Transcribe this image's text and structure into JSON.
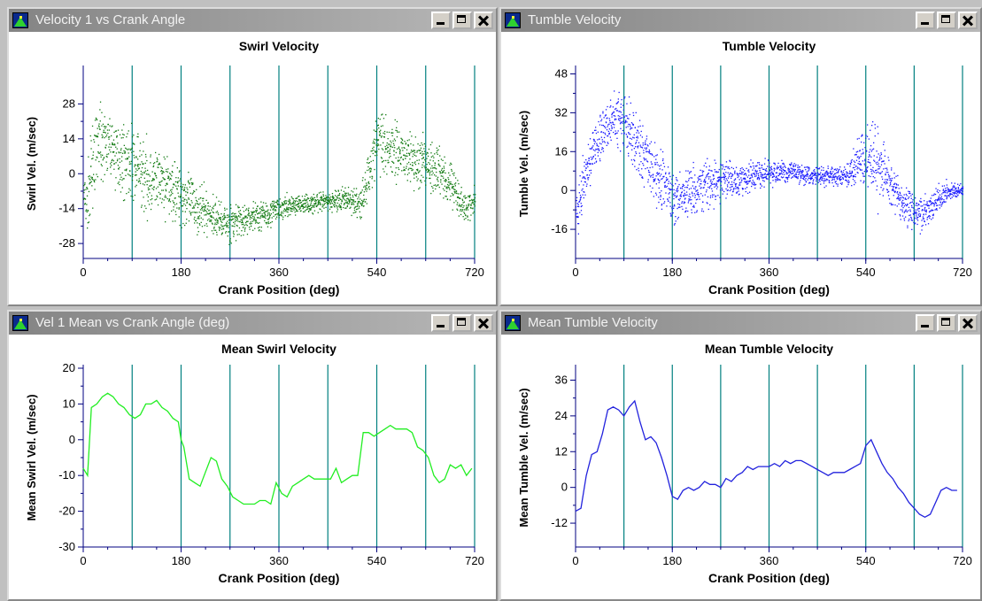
{
  "windows": [
    {
      "title": "Velocity 1 vs Crank Angle"
    },
    {
      "title": "Tumble Velocity"
    },
    {
      "title": "Vel 1 Mean vs Crank Angle (deg)"
    },
    {
      "title": "Mean Tumble Velocity"
    }
  ],
  "colors": {
    "swirl_scatter": "#117a11",
    "tumble_scatter": "#1a1aff",
    "swirl_mean": "#22ee22",
    "tumble_mean": "#2222dd",
    "vertical_grid": "#008080"
  },
  "chart_data": [
    {
      "type": "scatter",
      "title": "Swirl Velocity",
      "xlabel": "Crank Position (deg)",
      "ylabel": "Swirl Vel. (m/sec)",
      "xlim": [
        0,
        720
      ],
      "ylim": [
        -34,
        42
      ],
      "xticks": [
        0,
        180,
        360,
        540,
        720
      ],
      "yticks": [
        -28,
        -14,
        0,
        14,
        28
      ],
      "vgrid": [
        90,
        180,
        270,
        360,
        450,
        540,
        630,
        720
      ],
      "envelope": {
        "x": [
          0,
          5,
          10,
          20,
          30,
          40,
          60,
          90,
          120,
          150,
          180,
          210,
          240,
          270,
          300,
          330,
          360,
          390,
          420,
          450,
          480,
          510,
          540,
          560,
          590,
          620,
          650,
          680,
          700,
          710,
          720
        ],
        "y": [
          -8,
          -14,
          -5,
          8,
          14,
          12,
          8,
          4,
          -2,
          -4,
          -8,
          -14,
          -17,
          -20,
          -18,
          -16,
          -14,
          -12,
          -12,
          -11,
          -10,
          -12,
          14,
          12,
          8,
          4,
          2,
          -4,
          -14,
          -13,
          -10
        ],
        "spread": [
          6,
          10,
          12,
          12,
          10,
          10,
          10,
          12,
          12,
          10,
          10,
          8,
          6,
          6,
          5,
          5,
          4,
          3,
          3,
          3,
          4,
          6,
          10,
          10,
          10,
          8,
          8,
          8,
          5,
          5,
          5
        ]
      },
      "points_per_x": 3
    },
    {
      "type": "scatter",
      "title": "Tumble Velocity",
      "xlabel": "Crank Position (deg)",
      "ylabel": "Tumble Vel. (m/sec)",
      "xlim": [
        0,
        720
      ],
      "ylim": [
        -28,
        50
      ],
      "xticks": [
        0,
        180,
        360,
        540,
        720
      ],
      "yticks": [
        -16,
        0,
        16,
        32,
        48
      ],
      "vgrid": [
        90,
        180,
        270,
        360,
        450,
        540,
        630,
        720
      ],
      "envelope": {
        "x": [
          0,
          5,
          15,
          25,
          40,
          60,
          80,
          100,
          130,
          160,
          180,
          210,
          240,
          270,
          300,
          330,
          360,
          400,
          450,
          500,
          540,
          560,
          580,
          610,
          640,
          660,
          680,
          700,
          720
        ],
        "y": [
          -10,
          -6,
          4,
          12,
          20,
          28,
          30,
          24,
          14,
          4,
          -2,
          0,
          2,
          4,
          5,
          6,
          7,
          8,
          6,
          6,
          14,
          10,
          5,
          -6,
          -10,
          -6,
          -2,
          0,
          0
        ],
        "spread": [
          6,
          8,
          8,
          8,
          8,
          8,
          8,
          10,
          10,
          10,
          10,
          8,
          8,
          7,
          6,
          5,
          4,
          3,
          3,
          3,
          10,
          12,
          8,
          6,
          6,
          5,
          4,
          3,
          2
        ]
      },
      "points_per_x": 3
    },
    {
      "type": "line",
      "title": "Mean Swirl Velocity",
      "xlabel": "Crank Position (deg)",
      "ylabel": "Mean Swirl Vel. (m/sec)",
      "xlim": [
        0,
        720
      ],
      "ylim": [
        -30,
        20
      ],
      "xticks": [
        0,
        180,
        360,
        540,
        720
      ],
      "yticks": [
        -30,
        -20,
        -10,
        0,
        10,
        20
      ],
      "vgrid": [
        90,
        180,
        270,
        360,
        450,
        540,
        630,
        720
      ],
      "x": [
        0,
        8,
        15,
        25,
        35,
        45,
        55,
        65,
        75,
        85,
        95,
        105,
        115,
        125,
        135,
        145,
        155,
        165,
        175,
        180,
        185,
        195,
        205,
        215,
        225,
        235,
        245,
        255,
        265,
        275,
        285,
        295,
        305,
        315,
        325,
        335,
        345,
        355,
        365,
        375,
        385,
        395,
        405,
        415,
        425,
        435,
        445,
        455,
        465,
        475,
        485,
        495,
        505,
        515,
        525,
        535,
        545,
        555,
        565,
        575,
        585,
        595,
        605,
        615,
        625,
        635,
        645,
        655,
        665,
        675,
        685,
        695,
        705,
        715
      ],
      "values": [
        -8,
        -10,
        9,
        10,
        12,
        13,
        12,
        10,
        9,
        7,
        6,
        7,
        10,
        10,
        11,
        9,
        8,
        6,
        5,
        0,
        -2,
        -11,
        -12,
        -13,
        -9,
        -5,
        -6,
        -11,
        -13,
        -16,
        -17,
        -18,
        -18,
        -18,
        -17,
        -17,
        -18,
        -12,
        -15,
        -16,
        -13,
        -12,
        -11,
        -10,
        -11,
        -11,
        -11,
        -11,
        -8,
        -12,
        -11,
        -10,
        -10,
        2,
        2,
        1,
        2,
        3,
        4,
        3,
        3,
        3,
        2,
        -2,
        -3,
        -5,
        -10,
        -12,
        -11,
        -7,
        -8,
        -7,
        -10,
        -8
      ]
    },
    {
      "type": "line",
      "title": "Mean Tumble Velocity",
      "xlabel": "Crank Position (deg)",
      "ylabel": "Mean Tumble Vel. (m/sec)",
      "xlim": [
        0,
        720
      ],
      "ylim": [
        -20,
        40
      ],
      "xticks": [
        0,
        180,
        360,
        540,
        720
      ],
      "yticks": [
        -12,
        0,
        12,
        24,
        36
      ],
      "vgrid": [
        90,
        180,
        270,
        360,
        450,
        540,
        630,
        720
      ],
      "x": [
        0,
        10,
        20,
        30,
        40,
        50,
        60,
        70,
        80,
        90,
        100,
        110,
        120,
        130,
        140,
        150,
        160,
        170,
        180,
        190,
        200,
        210,
        220,
        230,
        240,
        250,
        260,
        270,
        280,
        290,
        300,
        310,
        320,
        330,
        340,
        350,
        360,
        370,
        380,
        390,
        400,
        410,
        420,
        430,
        440,
        450,
        460,
        470,
        480,
        490,
        500,
        510,
        520,
        530,
        540,
        550,
        560,
        570,
        580,
        590,
        600,
        610,
        620,
        630,
        640,
        650,
        660,
        670,
        680,
        690,
        700,
        710
      ],
      "values": [
        -8,
        -7,
        4,
        11,
        12,
        18,
        26,
        27,
        26,
        24,
        27,
        29,
        22,
        16,
        17,
        15,
        10,
        4,
        -3,
        -4,
        -1,
        0,
        -1,
        0,
        2,
        1,
        1,
        0,
        3,
        2,
        4,
        5,
        7,
        6,
        7,
        7,
        7,
        8,
        7,
        9,
        8,
        9,
        9,
        8,
        7,
        6,
        5,
        4,
        5,
        5,
        5,
        6,
        7,
        8,
        14,
        16,
        12,
        8,
        5,
        3,
        0,
        -2,
        -5,
        -7,
        -9,
        -10,
        -9,
        -5,
        -1,
        0,
        -1,
        -1
      ]
    }
  ]
}
